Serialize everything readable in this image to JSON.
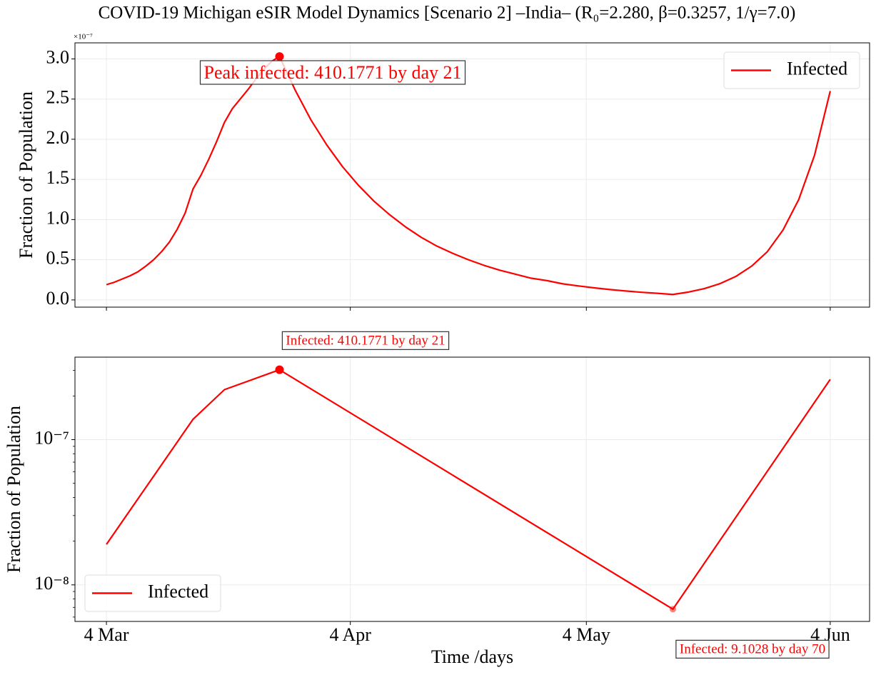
{
  "title": "COVID-19 Michigan eSIR Model Dynamics [Scenario 2] –India– (R₀=2.280, β=0.3257, 1/γ=7.0)",
  "chart_data": [
    {
      "type": "line",
      "ylabel": "Fraction of Population",
      "offset_text": "×10⁻⁷",
      "x": [
        "4 Mar",
        "5 Mar",
        "6 Mar",
        "7 Mar",
        "8 Mar",
        "9 Mar",
        "10 Mar",
        "11 Mar",
        "12 Mar",
        "13 Mar",
        "14 Mar",
        "15 Mar",
        "16 Mar",
        "17 Mar",
        "18 Mar",
        "19 Mar",
        "20 Mar",
        "21 Mar",
        "22 Mar",
        "23 Mar",
        "24 Mar",
        "25 Mar",
        "26 Mar",
        "28 Mar",
        "30 Mar",
        "1 Apr",
        "3 Apr",
        "5 Apr",
        "7 Apr",
        "9 Apr",
        "11 Apr",
        "13 Apr",
        "15 Apr",
        "17 Apr",
        "19 Apr",
        "21 Apr",
        "23 Apr",
        "25 Apr",
        "27 Apr",
        "29 Apr",
        "1 May",
        "3 May",
        "5 May",
        "7 May",
        "9 May",
        "11 May",
        "13 May",
        "15 May",
        "17 May",
        "19 May",
        "21 May",
        "23 May",
        "25 May",
        "27 May",
        "29 May",
        "31 May",
        "2 Jun",
        "4 Jun"
      ],
      "series": [
        {
          "name": "Infected",
          "color": "#ff0000",
          "values": [
            0.19,
            0.22,
            0.26,
            0.3,
            0.35,
            0.42,
            0.5,
            0.6,
            0.72,
            0.88,
            1.08,
            1.38,
            1.55,
            1.75,
            1.97,
            2.21,
            2.38,
            2.5,
            2.62,
            2.75,
            2.87,
            2.97,
            3.03,
            2.61,
            2.24,
            1.93,
            1.66,
            1.43,
            1.23,
            1.06,
            0.91,
            0.78,
            0.67,
            0.58,
            0.5,
            0.43,
            0.37,
            0.32,
            0.27,
            0.24,
            0.2,
            0.174,
            0.15,
            0.129,
            0.111,
            0.095,
            0.082,
            0.068,
            0.098,
            0.141,
            0.203,
            0.292,
            0.42,
            0.6,
            0.87,
            1.25,
            1.8,
            2.6
          ]
        }
      ],
      "xlim": [
        "28 Feb",
        "9 Jun"
      ],
      "xticks": [
        "4 Mar",
        "4 Apr",
        "4 May",
        "4 Jun"
      ],
      "xtick_labels": false,
      "ylim": [
        -0.09,
        3.2
      ],
      "yticks": [
        {
          "value": 0,
          "label": "0.0"
        },
        0.5,
        {
          "value": 1,
          "label": "1.0"
        },
        1.5,
        {
          "value": 2,
          "label": "2.0"
        },
        2.5,
        {
          "value": 3,
          "label": "3.0"
        }
      ],
      "grid": true,
      "legend": "upper right",
      "markers": [
        "max"
      ],
      "annotations": [
        "Peak infected: 410.1771 by day 21"
      ]
    },
    {
      "type": "line",
      "ylabel": "Fraction of Population",
      "xlabel": "Time /days",
      "yscale": "log",
      "x": [
        "4 Mar",
        "15 Mar",
        "19 Mar",
        "26 Mar",
        "15 May",
        "4 Jun"
      ],
      "series": [
        {
          "name": "Infected",
          "color": "#ff0000",
          "values": [
            1.9e-08,
            1.38e-07,
            2.21e-07,
            3.03e-07,
            6.8e-09,
            2.6e-07
          ]
        }
      ],
      "xlim": [
        "28 Feb",
        "9 Jun"
      ],
      "xticks": [
        "4 Mar",
        "4 Apr",
        "4 May",
        "4 Jun"
      ],
      "ylim": [
        5.6e-09,
        3.7e-07
      ],
      "yticks": [
        {
          "value": 1e-08,
          "label": "10⁻⁸"
        },
        {
          "value": 1e-07,
          "label": "10⁻⁷"
        }
      ],
      "grid": true,
      "legend": "lower left",
      "markers": [
        "max",
        "min"
      ],
      "annotations": [
        "Infected: 410.1771 by day 21",
        "Infected: 9.1028 by day 70"
      ]
    }
  ]
}
